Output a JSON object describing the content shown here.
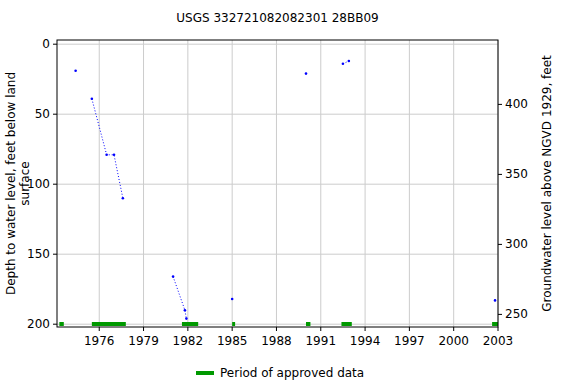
{
  "chart_data": {
    "type": "line",
    "title": "USGS 332721082082301 28BB09",
    "y_label": [
      "Depth to water level, feet below land",
      "surface"
    ],
    "y2_label": "Groundwater level above NGVD 1929, feet",
    "xlim": [
      1973.14,
      2003
    ],
    "xticks": [
      1976,
      1979,
      1982,
      1985,
      1988,
      1991,
      1994,
      1997,
      2000,
      2003
    ],
    "ylim": [
      202,
      -3
    ],
    "yticks": [
      0,
      50,
      100,
      150,
      200
    ],
    "y2lim": [
      241,
      446
    ],
    "y2ticks": [
      250,
      300,
      350,
      400
    ],
    "grid": true,
    "legend": "bottom",
    "x": [
      1974.4,
      null,
      1975.5,
      1976.5,
      1977.0,
      1977.6,
      null,
      1981.0,
      1981.8,
      1981.9,
      null,
      1985.0,
      null,
      1990.0,
      null,
      1992.5,
      1992.9,
      null,
      2002.8
    ],
    "series": [
      {
        "color": "#0000ff",
        "marker": "dot",
        "line_style": "dotted",
        "values": [
          19,
          null,
          39,
          79,
          79,
          110,
          null,
          166,
          190,
          196,
          null,
          182,
          null,
          21,
          null,
          14,
          12,
          null,
          183
        ]
      }
    ],
    "approved_periods": {
      "name": "Period of approved data",
      "color": "#009900",
      "ranges": [
        [
          1973.3,
          1973.6
        ],
        [
          1975.5,
          1977.8
        ],
        [
          1981.6,
          1982.7
        ],
        [
          1985.0,
          1985.2
        ],
        [
          1990.0,
          1990.3
        ],
        [
          1992.4,
          1993.1
        ],
        [
          2002.6,
          2003.0
        ]
      ]
    }
  }
}
